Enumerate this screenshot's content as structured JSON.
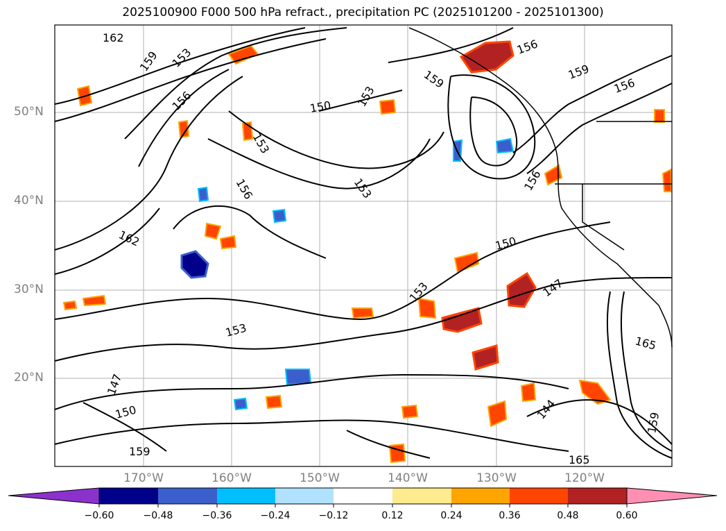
{
  "title": "2025100900 F000 500 hPa refract., precipitation PC (2025101200 - 2025101300)",
  "lat_labels": [
    "50°N",
    "40°N",
    "30°N",
    "20°N"
  ],
  "lon_labels": [
    "170°W",
    "160°W",
    "150°W",
    "140°W",
    "130°W",
    "120°W"
  ],
  "contour_labels": [
    "162",
    "159",
    "153",
    "156",
    "150",
    "153",
    "153",
    "156",
    "153",
    "159",
    "156",
    "159",
    "156",
    "156",
    "150",
    "147",
    "153",
    "153",
    "147",
    "150",
    "144",
    "165",
    "159",
    "162",
    "165",
    "159"
  ],
  "colorbar": {
    "colors": [
      "#8b32cd",
      "#00008b",
      "#3a5fcd",
      "#00bfff",
      "#b0e2ff",
      "#ffffff",
      "#fdeb8d",
      "#ffa500",
      "#ff4500",
      "#b22222",
      "#ff8fb2"
    ],
    "ticks": [
      "−0.60",
      "−0.48",
      "−0.36",
      "−0.24",
      "−0.12",
      "0.12",
      "0.24",
      "0.36",
      "0.48",
      "0.60"
    ]
  }
}
